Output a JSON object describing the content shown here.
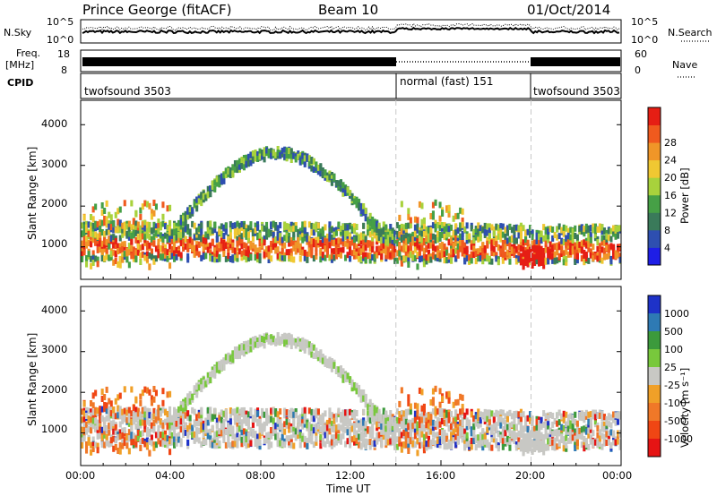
{
  "header": {
    "site": "Prince George (fitACF)",
    "beam": "Beam 10",
    "date": "01/Oct/2014"
  },
  "top_panels": {
    "nsky": {
      "label": "N.Sky",
      "ytick_top": "10^5",
      "ytick_bottom": "10^0"
    },
    "nsearch": {
      "label": "N.Search",
      "ytick_top": "10^5",
      "ytick_bottom": "10^0"
    },
    "freq": {
      "label_line1": "Freq.",
      "label_line2": "[MHz]",
      "ytick_top": "18",
      "ytick_bottom": "8"
    },
    "nave": {
      "label": "Nave",
      "ytick_top": "60",
      "ytick_bottom": "0"
    },
    "cpid": {
      "label": "CPID",
      "segments": [
        {
          "name": "twofsound 3503",
          "start_hour": 0,
          "end_hour": 14
        },
        {
          "name": "normal (fast) 151",
          "start_hour": 14,
          "end_hour": 20
        },
        {
          "name": "twofsound 3503",
          "start_hour": 20,
          "end_hour": 24
        }
      ]
    }
  },
  "power_panel": {
    "ylabel": "Slant Range [km]",
    "yticks": [
      "1000",
      "2000",
      "3000",
      "4000"
    ],
    "colorbar_label": "Power [dB]",
    "colorbar_ticks": [
      "4",
      "8",
      "12",
      "16",
      "20",
      "24",
      "28"
    ],
    "colors": [
      "#1e1ee6",
      "#2e4fb0",
      "#3a7a5a",
      "#46a046",
      "#a8d23c",
      "#f0c832",
      "#f09628",
      "#f05a1e",
      "#e61e14"
    ]
  },
  "velocity_panel": {
    "ylabel": "Slant Range [km]",
    "yticks": [
      "1000",
      "2000",
      "3000",
      "4000"
    ],
    "colorbar_label": "Velocity [m s⁻¹]",
    "colorbar_ticks": [
      "1000",
      "500",
      "100",
      "25",
      "-25",
      "-100",
      "-500",
      "-1000"
    ],
    "colors": [
      "#1e32c8",
      "#2e7ab4",
      "#3c9a3c",
      "#78c83c",
      "#c8c8c4",
      "#f0a028",
      "#f07828",
      "#f04614",
      "#e61414"
    ]
  },
  "xaxis": {
    "label": "Time UT",
    "ticks": [
      "00:00",
      "04:00",
      "08:00",
      "12:00",
      "16:00",
      "20:00",
      "00:00"
    ]
  },
  "chart_data": {
    "type": "heatmap",
    "title": "Prince George (fitACF) Beam 10 01/Oct/2014",
    "xlabel": "Time UT",
    "ylabel": "Slant Range [km]",
    "xlim_hours": [
      0,
      24
    ],
    "ylim_km": [
      200,
      4600
    ],
    "mode_change_hours": [
      14,
      20
    ],
    "scatter_bands": [
      {
        "name": "near-range ground scatter",
        "start_hour": 0,
        "end_hour": 24,
        "range_km_at_start": 1000,
        "range_km_at_end": 900,
        "dominant_power_db": 24
      },
      {
        "name": "far-range arc",
        "start_hour": 3.8,
        "end_hour": 14,
        "peak_range_km": 3300,
        "peak_hour": 9,
        "dominant_power_db": 10
      },
      {
        "name": "evening return",
        "start_hour": 19.5,
        "end_hour": 20.5,
        "range_km": 700,
        "dominant_power_db": 28
      }
    ],
    "power_scale_db": [
      0,
      30
    ],
    "velocity_scale_ms": [
      -1000,
      1000
    ]
  }
}
